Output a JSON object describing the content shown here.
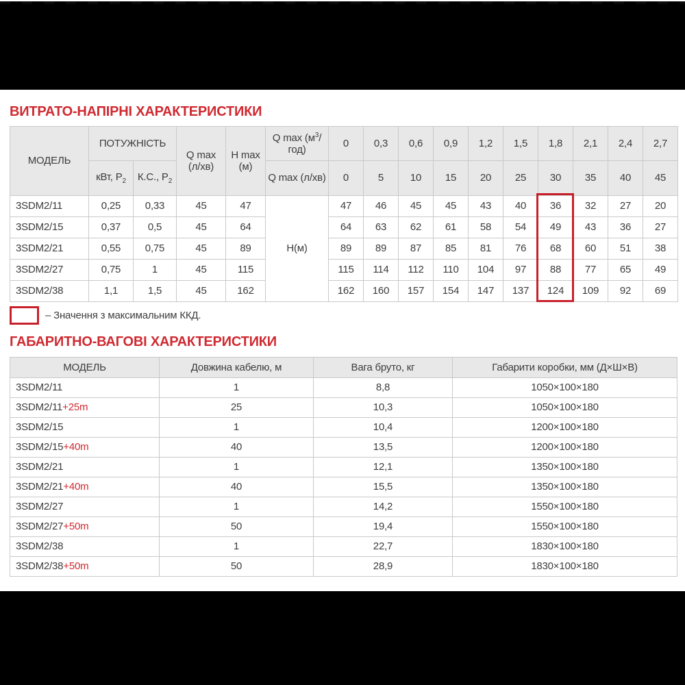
{
  "colors": {
    "accent_red": "#cf2a31",
    "highlight_red": "#c8202a",
    "header_bg": "#e8e8e8",
    "border": "#c9c9c9",
    "bar_black": "#000000",
    "text": "#3c3c3c"
  },
  "sections": {
    "flow": {
      "title": "ВИТРАТО-НАПІРНІ ХАРАКТЕРИСТИКИ"
    },
    "dimensions": {
      "title": "ГАБАРИТНО-ВАГОВІ ХАРАКТЕРИСТИКИ"
    }
  },
  "legend": {
    "text": "– Значення з максимальним ККД."
  },
  "flow_table": {
    "headers": {
      "model": "МОДЕЛЬ",
      "power_group": "ПОТУЖНІСТЬ",
      "power_kw_pre": "кВт, P",
      "power_kw_sub": "2",
      "power_hp_pre": "К.С., P",
      "power_hp_sub": "2",
      "qmax_lmin": "Q max (л/хв)",
      "hmax_m": "H max (м)",
      "qmax_m3h_pre": "Q max (м",
      "qmax_m3h_sup": "3",
      "qmax_m3h_post": "/год)",
      "qmax_lmin2": "Q max (л/хв)",
      "h_unit": "Н(м)"
    },
    "q_m3h": [
      "0",
      "0,3",
      "0,6",
      "0,9",
      "1,2",
      "1,5",
      "1,8",
      "2,1",
      "2,4",
      "2,7"
    ],
    "q_lmin": [
      "0",
      "5",
      "10",
      "15",
      "20",
      "25",
      "30",
      "35",
      "40",
      "45"
    ],
    "highlight_column_index": 6,
    "rows": [
      {
        "model": "3SDM2/11",
        "kw": "0,25",
        "hp": "0,33",
        "qmax": "45",
        "hmax": "47",
        "h": [
          "47",
          "46",
          "45",
          "45",
          "43",
          "40",
          "36",
          "32",
          "27",
          "20"
        ]
      },
      {
        "model": "3SDM2/15",
        "kw": "0,37",
        "hp": "0,5",
        "qmax": "45",
        "hmax": "64",
        "h": [
          "64",
          "63",
          "62",
          "61",
          "58",
          "54",
          "49",
          "43",
          "36",
          "27"
        ]
      },
      {
        "model": "3SDM2/21",
        "kw": "0,55",
        "hp": "0,75",
        "qmax": "45",
        "hmax": "89",
        "h": [
          "89",
          "89",
          "87",
          "85",
          "81",
          "76",
          "68",
          "60",
          "51",
          "38"
        ]
      },
      {
        "model": "3SDM2/27",
        "kw": "0,75",
        "hp": "1",
        "qmax": "45",
        "hmax": "115",
        "h": [
          "115",
          "114",
          "112",
          "110",
          "104",
          "97",
          "88",
          "77",
          "65",
          "49"
        ]
      },
      {
        "model": "3SDM2/38",
        "kw": "1,1",
        "hp": "1,5",
        "qmax": "45",
        "hmax": "162",
        "h": [
          "162",
          "160",
          "157",
          "154",
          "147",
          "137",
          "124",
          "109",
          "92",
          "69"
        ]
      }
    ]
  },
  "dim_table": {
    "headers": [
      "МОДЕЛЬ",
      "Довжина кабелю, м",
      "Вага бруто, кг",
      "Габарити коробки, мм (Д×Ш×В)"
    ],
    "rows": [
      {
        "model": "3SDM2/11",
        "suffix": "",
        "cable": "1",
        "weight": "8,8",
        "box": "1050×100×180"
      },
      {
        "model": "3SDM2/11",
        "suffix": "+25m",
        "cable": "25",
        "weight": "10,3",
        "box": "1050×100×180"
      },
      {
        "model": "3SDM2/15",
        "suffix": "",
        "cable": "1",
        "weight": "10,4",
        "box": "1200×100×180"
      },
      {
        "model": "3SDM2/15",
        "suffix": "+40m",
        "cable": "40",
        "weight": "13,5",
        "box": "1200×100×180"
      },
      {
        "model": "3SDM2/21",
        "suffix": "",
        "cable": "1",
        "weight": "12,1",
        "box": "1350×100×180"
      },
      {
        "model": "3SDM2/21",
        "suffix": "+40m",
        "cable": "40",
        "weight": "15,5",
        "box": "1350×100×180"
      },
      {
        "model": "3SDM2/27",
        "suffix": "",
        "cable": "1",
        "weight": "14,2",
        "box": "1550×100×180"
      },
      {
        "model": "3SDM2/27",
        "suffix": "+50m",
        "cable": "50",
        "weight": "19,4",
        "box": "1550×100×180"
      },
      {
        "model": "3SDM2/38",
        "suffix": "",
        "cable": "1",
        "weight": "22,7",
        "box": "1830×100×180"
      },
      {
        "model": "3SDM2/38",
        "suffix": "+50m",
        "cable": "50",
        "weight": "28,9",
        "box": "1830×100×180"
      }
    ]
  }
}
